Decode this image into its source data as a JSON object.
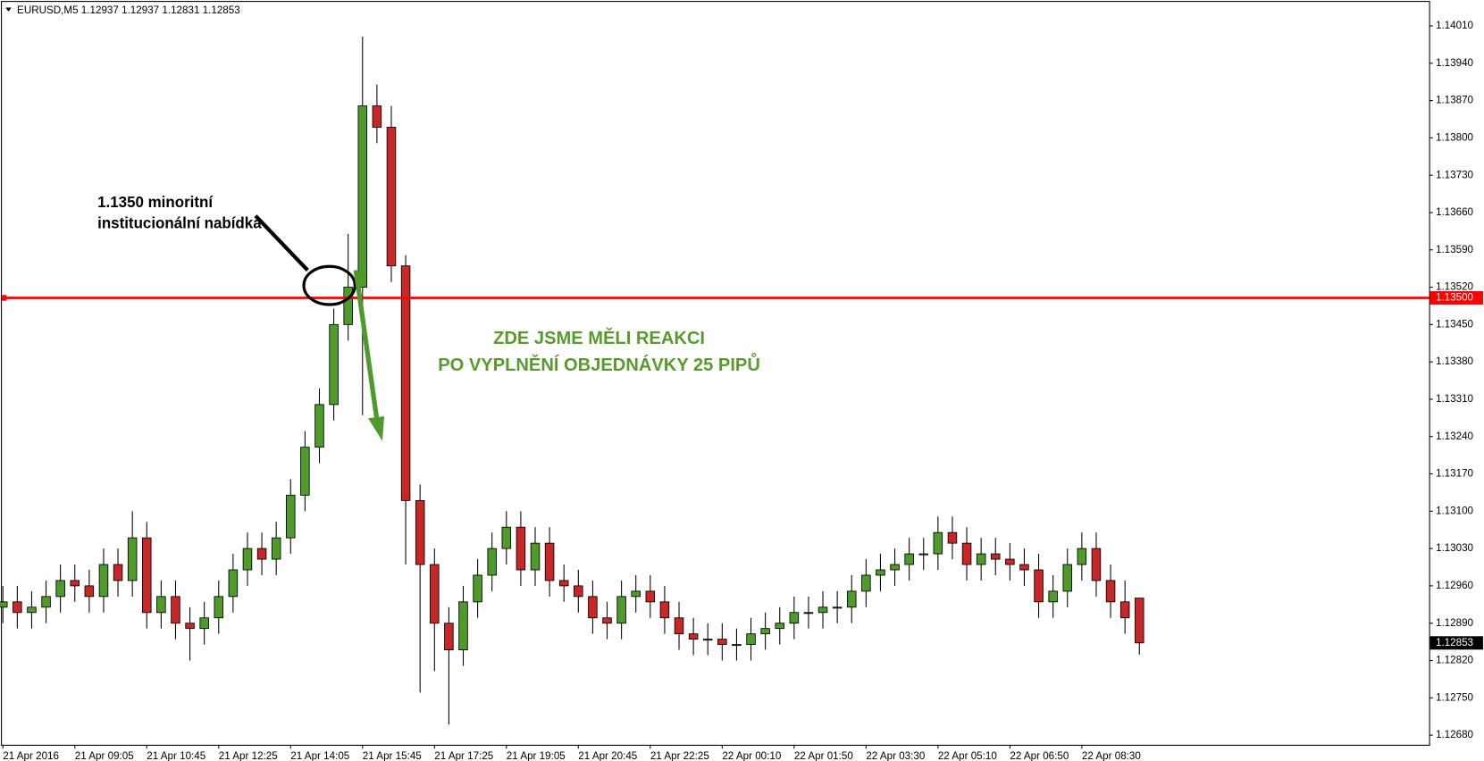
{
  "chart_data": {
    "type": "candlestick",
    "header": "EURUSD,M5  1.12937 1.12937 1.12831 1.12853",
    "annotation_black": [
      "1.1350 minoritní",
      "institucionální nabídka"
    ],
    "annotation_green": [
      "ZDE JSME MĚLI REAKCI",
      "PO VYPLNĚNÍ OBJEDNÁVKY 25 PIPŮ"
    ],
    "open": [
      1.1292,
      1.1293,
      1.1291,
      1.1292,
      1.1294,
      1.1297,
      1.1296,
      1.1294,
      1.13,
      1.1297,
      1.1305,
      1.1291,
      1.1294,
      1.1289,
      1.1288,
      1.129,
      1.1294,
      1.1299,
      1.1303,
      1.1301,
      1.1305,
      1.1313,
      1.1322,
      1.133,
      1.1345,
      1.1352,
      1.1386,
      1.1382,
      1.1356,
      1.1312,
      1.13,
      1.1289,
      1.1284,
      1.1293,
      1.1298,
      1.1303,
      1.1307,
      1.1299,
      1.1304,
      1.1297,
      1.1296,
      1.1294,
      1.129,
      1.1289,
      1.1294,
      1.1295,
      1.1293,
      1.129,
      1.1287,
      1.1286,
      1.1286,
      1.1285,
      1.1285,
      1.1287,
      1.1288,
      1.1289,
      1.1291,
      1.1291,
      1.1292,
      1.1292,
      1.1295,
      1.1298,
      1.1299,
      1.13,
      1.1302,
      1.1302,
      1.1306,
      1.1304,
      1.13,
      1.1302,
      1.1301,
      1.13,
      1.1299,
      1.1293,
      1.1295,
      1.13,
      1.1303,
      1.1297,
      1.1293,
      1.12937
    ],
    "high": [
      1.1296,
      1.1296,
      1.1295,
      1.1297,
      1.13,
      1.13,
      1.1299,
      1.1303,
      1.1303,
      1.131,
      1.1308,
      1.1297,
      1.1297,
      1.1292,
      1.1293,
      1.1297,
      1.1302,
      1.1306,
      1.1306,
      1.1308,
      1.1316,
      1.1325,
      1.1333,
      1.1348,
      1.1362,
      1.1399,
      1.139,
      1.1386,
      1.1358,
      1.1315,
      1.1303,
      1.1292,
      1.1296,
      1.1301,
      1.1306,
      1.131,
      1.131,
      1.1307,
      1.1307,
      1.13,
      1.1299,
      1.1297,
      1.1293,
      1.1297,
      1.1298,
      1.1298,
      1.1296,
      1.1293,
      1.129,
      1.1289,
      1.1289,
      1.1288,
      1.129,
      1.1291,
      1.1292,
      1.1294,
      1.1294,
      1.1295,
      1.1295,
      1.1298,
      1.1301,
      1.1302,
      1.1303,
      1.1305,
      1.1305,
      1.1309,
      1.1309,
      1.1307,
      1.1305,
      1.1305,
      1.1304,
      1.1303,
      1.1302,
      1.1298,
      1.1303,
      1.1306,
      1.1306,
      1.13,
      1.1297,
      1.12937
    ],
    "low": [
      1.1289,
      1.1288,
      1.1288,
      1.1289,
      1.1291,
      1.1293,
      1.1291,
      1.1291,
      1.1294,
      1.1294,
      1.1288,
      1.1288,
      1.1286,
      1.1282,
      1.1285,
      1.1287,
      1.1291,
      1.1296,
      1.1298,
      1.1298,
      1.1302,
      1.131,
      1.1319,
      1.1327,
      1.1342,
      1.1328,
      1.1379,
      1.1353,
      1.13,
      1.1276,
      1.128,
      1.127,
      1.1281,
      1.129,
      1.1295,
      1.13,
      1.1296,
      1.1296,
      1.1294,
      1.1293,
      1.1291,
      1.1287,
      1.1286,
      1.1286,
      1.1291,
      1.129,
      1.1287,
      1.1284,
      1.1283,
      1.1283,
      1.1282,
      1.1282,
      1.1282,
      1.1284,
      1.1285,
      1.1286,
      1.1288,
      1.1288,
      1.1289,
      1.1289,
      1.1292,
      1.1295,
      1.1296,
      1.1297,
      1.1299,
      1.1299,
      1.1301,
      1.1297,
      1.1297,
      1.1298,
      1.1297,
      1.1296,
      1.129,
      1.129,
      1.1292,
      1.1297,
      1.1294,
      1.129,
      1.1287,
      1.12831
    ],
    "close": [
      1.1293,
      1.1291,
      1.1292,
      1.1294,
      1.1297,
      1.1296,
      1.1294,
      1.13,
      1.1297,
      1.1305,
      1.1291,
      1.1294,
      1.1289,
      1.1288,
      1.129,
      1.1294,
      1.1299,
      1.1303,
      1.1301,
      1.1305,
      1.1313,
      1.1322,
      1.133,
      1.1345,
      1.1352,
      1.1386,
      1.1382,
      1.1356,
      1.1312,
      1.13,
      1.1289,
      1.1284,
      1.1293,
      1.1298,
      1.1303,
      1.1307,
      1.1299,
      1.1304,
      1.1297,
      1.1296,
      1.1294,
      1.129,
      1.1289,
      1.1294,
      1.1295,
      1.1293,
      1.129,
      1.1287,
      1.1286,
      1.1286,
      1.1285,
      1.1285,
      1.1287,
      1.1288,
      1.1289,
      1.1291,
      1.1291,
      1.1292,
      1.1292,
      1.1295,
      1.1298,
      1.1299,
      1.13,
      1.1302,
      1.1302,
      1.1306,
      1.1304,
      1.13,
      1.1302,
      1.1301,
      1.13,
      1.1299,
      1.1293,
      1.1295,
      1.13,
      1.1303,
      1.1297,
      1.1293,
      1.129,
      1.12853
    ],
    "up_color": "#4e9a2a",
    "down_color": "#c62828",
    "xlim": [
      -0.07,
      99.14
    ],
    "xticks": [
      {
        "value": 0,
        "label": "21 Apr 2016"
      },
      {
        "value": 5,
        "label": "21 Apr 09:05"
      },
      {
        "value": 10,
        "label": "21 Apr 10:45"
      },
      {
        "value": 15,
        "label": "21 Apr 12:25"
      },
      {
        "value": 20,
        "label": "21 Apr 14:05"
      },
      {
        "value": 25,
        "label": "21 Apr 15:45"
      },
      {
        "value": 30,
        "label": "21 Apr 17:25"
      },
      {
        "value": 35,
        "label": "21 Apr 19:05"
      },
      {
        "value": 40,
        "label": "21 Apr 20:45"
      },
      {
        "value": 45,
        "label": "21 Apr 22:25"
      },
      {
        "value": 50,
        "label": "22 Apr 00:10"
      },
      {
        "value": 55,
        "label": "22 Apr 01:50"
      },
      {
        "value": 60,
        "label": "22 Apr 03:30"
      },
      {
        "value": 65,
        "label": "22 Apr 05:10"
      },
      {
        "value": 70,
        "label": "22 Apr 06:50"
      },
      {
        "value": 75,
        "label": "22 Apr 08:30"
      }
    ],
    "ylim": [
      1.12662,
      1.14055
    ],
    "yticks": [
      {
        "value": 1.1268,
        "label": "1.12680"
      },
      {
        "value": 1.1275,
        "label": "1.12750"
      },
      {
        "value": 1.1282,
        "label": "1.12820"
      },
      {
        "value": 1.1289,
        "label": "1.12890"
      },
      {
        "value": 1.1296,
        "label": "1.12960"
      },
      {
        "value": 1.1303,
        "label": "1.13030"
      },
      {
        "value": 1.131,
        "label": "1.13100"
      },
      {
        "value": 1.1317,
        "label": "1.13170"
      },
      {
        "value": 1.1324,
        "label": "1.13240"
      },
      {
        "value": 1.1331,
        "label": "1.13310"
      },
      {
        "value": 1.1338,
        "label": "1.13380"
      },
      {
        "value": 1.1345,
        "label": "1.13450"
      },
      {
        "value": 1.1352,
        "label": "1.13520"
      },
      {
        "value": 1.1359,
        "label": "1.13590"
      },
      {
        "value": 1.1366,
        "label": "1.13660"
      },
      {
        "value": 1.1373,
        "label": "1.13730"
      },
      {
        "value": 1.138,
        "label": "1.13800"
      },
      {
        "value": 1.1387,
        "label": "1.13870"
      },
      {
        "value": 1.1394,
        "label": "1.13940"
      },
      {
        "value": 1.1401,
        "label": "1.14010"
      }
    ],
    "level": {
      "value": 1.135,
      "label": "1.13500",
      "color": "#ff0000"
    },
    "grid": false
  }
}
